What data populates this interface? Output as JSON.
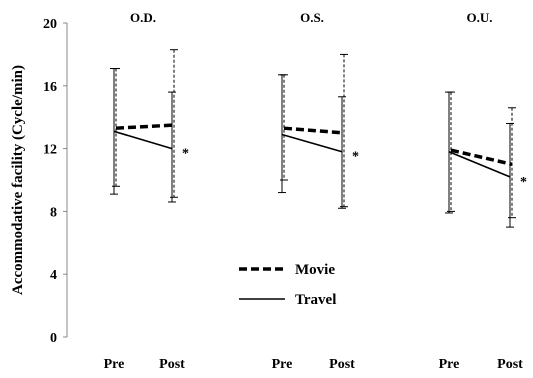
{
  "chart_data": {
    "type": "line",
    "ylabel": "Accommodative facility (Cycle/min)",
    "ylim": [
      0,
      20
    ],
    "yticks": [
      "0",
      "4",
      "8",
      "12",
      "16",
      "20"
    ],
    "x_labels": [
      "Pre",
      "Post"
    ],
    "groups": [
      {
        "name": "O.D.",
        "series": [
          {
            "name": "Movie",
            "values": [
              13.3,
              13.5
            ],
            "err_low": [
              9.6,
              8.9
            ],
            "err_high": [
              17.1,
              18.3
            ],
            "signif": [
              "",
              ""
            ]
          },
          {
            "name": "Travel",
            "values": [
              13.1,
              12.0
            ],
            "err_low": [
              9.1,
              8.6
            ],
            "err_high": [
              17.1,
              15.6
            ],
            "signif": [
              "",
              "*"
            ]
          }
        ]
      },
      {
        "name": "O.S.",
        "series": [
          {
            "name": "Movie",
            "values": [
              13.3,
              13.0
            ],
            "err_low": [
              10.0,
              8.3
            ],
            "err_high": [
              16.7,
              18.0
            ],
            "signif": [
              "",
              ""
            ]
          },
          {
            "name": "Travel",
            "values": [
              12.9,
              11.8
            ],
            "err_low": [
              9.2,
              8.2
            ],
            "err_high": [
              16.7,
              15.3
            ],
            "signif": [
              "",
              "*"
            ]
          }
        ]
      },
      {
        "name": "O.U.",
        "series": [
          {
            "name": "Movie",
            "values": [
              11.9,
              11.0
            ],
            "err_low": [
              8.0,
              7.6
            ],
            "err_high": [
              15.6,
              14.6
            ],
            "signif": [
              "",
              ""
            ]
          },
          {
            "name": "Travel",
            "values": [
              11.8,
              10.2
            ],
            "err_low": [
              7.9,
              7.0
            ],
            "err_high": [
              15.6,
              13.6
            ],
            "signif": [
              "",
              "*"
            ]
          }
        ]
      }
    ],
    "legend": {
      "placement": "bottom-center",
      "items": [
        "Movie",
        "Travel"
      ]
    },
    "grid": false
  }
}
